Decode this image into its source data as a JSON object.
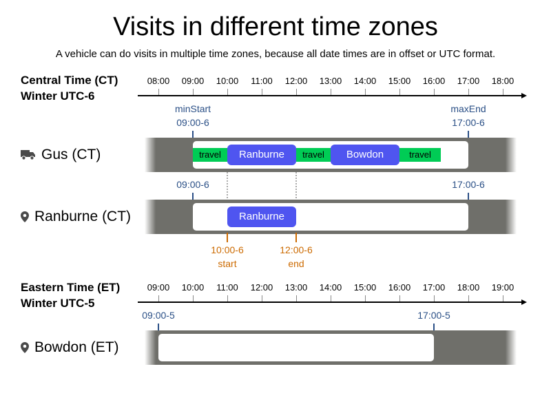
{
  "title": "Visits in different time zones",
  "subtitle": "A vehicle can do visits in multiple time zones, because all date times are in offset or UTC format.",
  "central": {
    "zone_name": "Central Time (CT)",
    "zone_offset": "Winter UTC-6",
    "ticks": [
      "08:00",
      "09:00",
      "10:00",
      "11:00",
      "12:00",
      "13:00",
      "14:00",
      "15:00",
      "16:00",
      "17:00",
      "18:00"
    ]
  },
  "eastern": {
    "zone_name": "Eastern Time (ET)",
    "zone_offset": "Winter UTC-5",
    "ticks": [
      "09:00",
      "10:00",
      "11:00",
      "12:00",
      "13:00",
      "14:00",
      "15:00",
      "16:00",
      "17:00",
      "18:00",
      "19:00"
    ]
  },
  "vehicle": {
    "label": "Gus (CT)",
    "icon": "truck-icon",
    "min_start_label": "minStart",
    "min_start_time": "09:00-6",
    "max_end_label": "maxEnd",
    "max_end_time": "17:00-6",
    "segments": [
      {
        "type": "travel",
        "label": "travel"
      },
      {
        "type": "visit",
        "label": "Ranburne"
      },
      {
        "type": "travel",
        "label": "travel"
      },
      {
        "type": "visit",
        "label": "Bowdon"
      },
      {
        "type": "travel",
        "label": "travel"
      }
    ]
  },
  "ranburne": {
    "label": "Ranburne (CT)",
    "icon": "location-pin-icon",
    "window_start": "09:00-6",
    "window_end": "17:00-6",
    "visit_label": "Ranburne",
    "start_time": "10:00-6",
    "start_label": "start",
    "end_time": "12:00-6",
    "end_label": "end"
  },
  "bowdon": {
    "label": "Bowdon (ET)",
    "icon": "location-pin-icon",
    "window_start": "09:00-5",
    "window_end": "17:00-5"
  },
  "colors": {
    "travel": "#00cc55",
    "visit": "#4f55f0",
    "track": "#6f6f6a",
    "time_label_blue": "#2a4f86",
    "time_label_orange": "#cc6a00"
  }
}
